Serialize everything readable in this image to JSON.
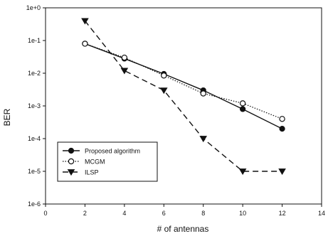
{
  "chart_data": {
    "type": "line",
    "xlabel": "# of antennas",
    "ylabel": "BER",
    "xlim": [
      0,
      14
    ],
    "ylim": [
      1e-06,
      1
    ],
    "yscale": "log",
    "x_ticks": [
      0,
      2,
      4,
      6,
      8,
      10,
      12,
      14
    ],
    "x_tick_labels": [
      "0",
      "2",
      "4",
      "6",
      "8",
      "10",
      "12",
      "14"
    ],
    "y_ticks": [
      1e-06,
      1e-05,
      0.0001,
      0.001,
      0.01,
      0.1,
      1
    ],
    "y_tick_labels": [
      "1e-6",
      "1e-5",
      "1e-4",
      "1e-3",
      "1e-2",
      "1e-1",
      "1e+0"
    ],
    "grid": false,
    "legend_position": "bottom-left",
    "series": [
      {
        "name": "Proposed algorithm",
        "marker": "filled-circle",
        "line": "solid",
        "color": "#111111",
        "x": [
          2,
          4,
          6,
          8,
          10,
          12
        ],
        "y": [
          0.08,
          0.028,
          0.0095,
          0.003,
          0.0008,
          0.0002
        ]
      },
      {
        "name": "MCGM",
        "marker": "open-circle",
        "line": "dotted",
        "color": "#111111",
        "x": [
          2,
          4,
          6,
          8,
          10,
          12
        ],
        "y": [
          0.08,
          0.03,
          0.0085,
          0.0024,
          0.0012,
          0.0004
        ]
      },
      {
        "name": "ILSP",
        "marker": "filled-triangle-down",
        "line": "dashed",
        "color": "#111111",
        "x": [
          2,
          4,
          6,
          8,
          10,
          12
        ],
        "y": [
          0.4,
          0.012,
          0.003,
          0.0001,
          1e-05,
          1e-05
        ]
      }
    ]
  }
}
